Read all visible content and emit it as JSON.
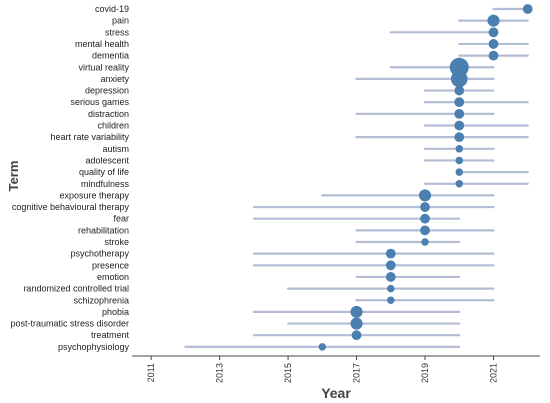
{
  "chart_data": {
    "type": "scatter",
    "title": "",
    "xlabel": "Year",
    "ylabel": "Term",
    "xlim": [
      2010.5,
      2022.3
    ],
    "xticks": [
      2011,
      2013,
      2015,
      2017,
      2019,
      2021
    ],
    "grid": false,
    "legend": "none",
    "terms": [
      {
        "term": "covid-19",
        "start": 2021,
        "end": 2022,
        "median": 2022,
        "size": 2
      },
      {
        "term": "pain",
        "start": 2020,
        "end": 2022,
        "median": 2021,
        "size": 3
      },
      {
        "term": "stress",
        "start": 2018,
        "end": 2021,
        "median": 2021,
        "size": 2
      },
      {
        "term": "mental health",
        "start": 2020,
        "end": 2022,
        "median": 2021,
        "size": 2
      },
      {
        "term": "dementia",
        "start": 2020,
        "end": 2022,
        "median": 2021,
        "size": 2
      },
      {
        "term": "virtual reality",
        "start": 2018,
        "end": 2021,
        "median": 2020,
        "size": 6
      },
      {
        "term": "anxiety",
        "start": 2017,
        "end": 2021,
        "median": 2020,
        "size": 5
      },
      {
        "term": "depression",
        "start": 2019,
        "end": 2021,
        "median": 2020,
        "size": 2
      },
      {
        "term": "serious games",
        "start": 2019,
        "end": 2022,
        "median": 2020,
        "size": 2
      },
      {
        "term": "distraction",
        "start": 2017,
        "end": 2021,
        "median": 2020,
        "size": 2
      },
      {
        "term": "children",
        "start": 2019,
        "end": 2022,
        "median": 2020,
        "size": 2
      },
      {
        "term": "heart rate variability",
        "start": 2017,
        "end": 2022,
        "median": 2020,
        "size": 2
      },
      {
        "term": "autism",
        "start": 2019,
        "end": 2021,
        "median": 2020,
        "size": 1
      },
      {
        "term": "adolescent",
        "start": 2019,
        "end": 2021,
        "median": 2020,
        "size": 1
      },
      {
        "term": "quality of life",
        "start": 2020,
        "end": 2022,
        "median": 2020,
        "size": 1
      },
      {
        "term": "mindfulness",
        "start": 2019,
        "end": 2022,
        "median": 2020,
        "size": 1
      },
      {
        "term": "exposure therapy",
        "start": 2016,
        "end": 2021,
        "median": 2019,
        "size": 3
      },
      {
        "term": "cognitive behavioural therapy",
        "start": 2014,
        "end": 2021,
        "median": 2019,
        "size": 2
      },
      {
        "term": "fear",
        "start": 2014,
        "end": 2020,
        "median": 2019,
        "size": 2
      },
      {
        "term": "rehabilitation",
        "start": 2017,
        "end": 2021,
        "median": 2019,
        "size": 2
      },
      {
        "term": "stroke",
        "start": 2017,
        "end": 2020,
        "median": 2019,
        "size": 1
      },
      {
        "term": "psychotherapy",
        "start": 2014,
        "end": 2021,
        "median": 2018,
        "size": 2
      },
      {
        "term": "presence",
        "start": 2014,
        "end": 2021,
        "median": 2018,
        "size": 2
      },
      {
        "term": "emotion",
        "start": 2017,
        "end": 2020,
        "median": 2018,
        "size": 2
      },
      {
        "term": "randomized controlled trial",
        "start": 2015,
        "end": 2021,
        "median": 2018,
        "size": 1
      },
      {
        "term": "schizophrenia",
        "start": 2017,
        "end": 2021,
        "median": 2018,
        "size": 1
      },
      {
        "term": "phobia",
        "start": 2014,
        "end": 2020,
        "median": 2017,
        "size": 3
      },
      {
        "term": "post-traumatic stress disorder",
        "start": 2015,
        "end": 2020,
        "median": 2017,
        "size": 3
      },
      {
        "term": "treatment",
        "start": 2014,
        "end": 2020,
        "median": 2017,
        "size": 2
      },
      {
        "term": "psychophysiology",
        "start": 2012,
        "end": 2020,
        "median": 2016,
        "size": 1
      }
    ]
  }
}
